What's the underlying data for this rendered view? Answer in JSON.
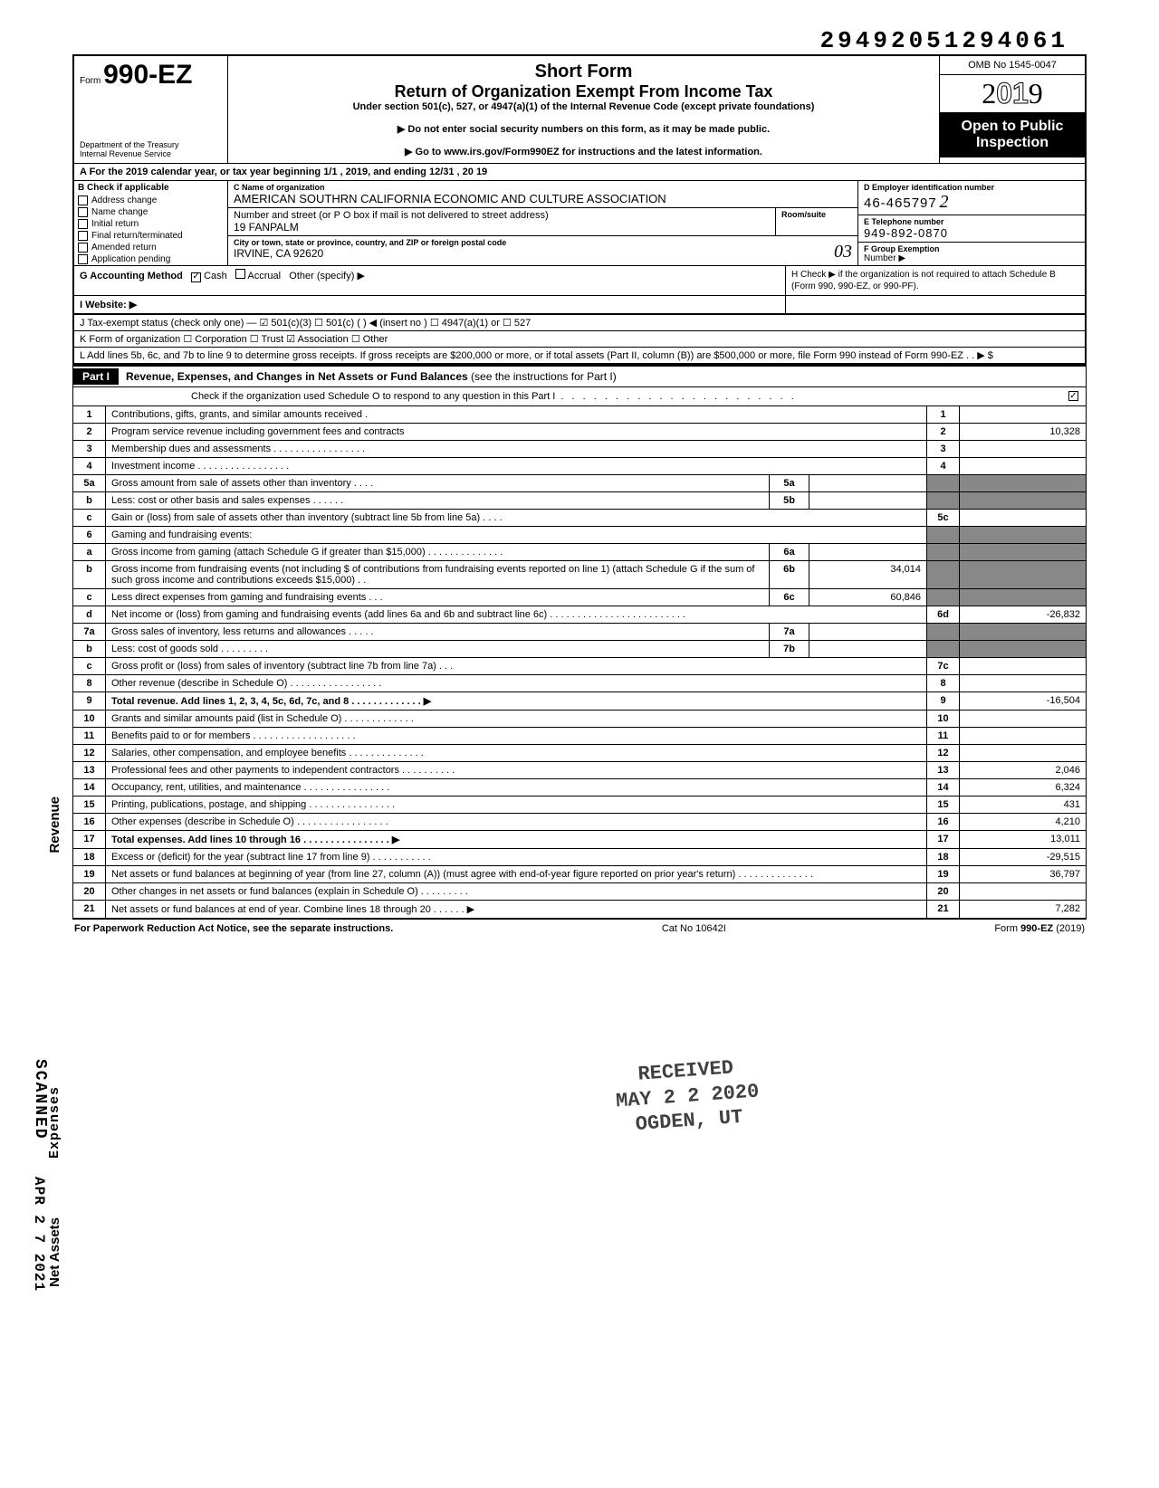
{
  "doc_number": "29492051294061",
  "header": {
    "form_prefix": "Form",
    "form_no": "990-EZ",
    "dept1": "Department of the Treasury",
    "dept2": "Internal Revenue Service",
    "title1": "Short Form",
    "title2": "Return of Organization Exempt From Income Tax",
    "title3": "Under section 501(c), 527, or 4947(a)(1) of the Internal Revenue Code (except private foundations)",
    "note1": "▶ Do not enter social security numbers on this form, as it may be made public.",
    "note2": "▶ Go to www.irs.gov/Form990EZ for instructions and the latest information.",
    "omb": "OMB No 1545-0047",
    "year": "2019",
    "open": "Open to Public Inspection"
  },
  "line_a": "A  For the 2019 calendar year, or tax year beginning                          1/1                          , 2019, and ending                  12/31                , 20    19",
  "section_b": {
    "label": "B  Check if applicable",
    "items": [
      "Address change",
      "Name change",
      "Initial return",
      "Final return/terminated",
      "Amended return",
      "Application pending"
    ]
  },
  "section_c": {
    "name_lab": "C  Name of organization",
    "name_val": "AMERICAN SOUTHRN CALIFORNIA ECONOMIC AND CULTURE ASSOCIATION",
    "addr_lab": "Number and street (or P O  box if mail is not delivered to street address)",
    "addr_val": "19 FANPALM",
    "room_lab": "Room/suite",
    "city_lab": "City or town, state or province, country, and ZIP or foreign postal code",
    "city_val": "IRVINE, CA 92620"
  },
  "section_d": {
    "ein_lab": "D  Employer identification number",
    "ein_val": "46-465797",
    "ein_hand": "2",
    "tel_lab": "E  Telephone number",
    "tel_val": "949-892-0870",
    "grp_lab": "F  Group Exemption",
    "grp_val": "Number  ▶"
  },
  "row_g": {
    "left_label": "G  Accounting Method",
    "cash": "Cash",
    "accr": "Accrual",
    "other": "Other (specify) ▶",
    "website": "I  Website: ▶",
    "h": "H  Check  ▶        if the organization is not required to attach Schedule B (Form 990, 990-EZ, or 990-PF)."
  },
  "row_j": "J  Tax-exempt status (check only one) —  ☑ 501(c)(3)     ☐ 501(c) (         ) ◀ (insert no )  ☐ 4947(a)(1) or    ☐ 527",
  "row_k": "K  Form of organization        ☐ Corporation        ☐ Trust                ☑ Association        ☐ Other",
  "row_l": "L  Add lines 5b, 6c, and 7b to line 9 to determine gross receipts. If gross receipts are $200,000 or more, or if total assets (Part II, column (B)) are $500,000 or more, file Form 990 instead of Form 990-EZ             .             .             ▶   $",
  "part1": {
    "bar": "Part I",
    "title": "Revenue, Expenses, and Changes in Net Assets or Fund Balances",
    "tail": " (see the instructions for Part I)",
    "check": "Check if the organization used Schedule O to respond to any question in this Part I",
    "check_box": "✓"
  },
  "lines": [
    {
      "n": "1",
      "d": "Contributions, gifts, grants, and similar amounts received .",
      "b": "1",
      "a": ""
    },
    {
      "n": "2",
      "d": "Program service revenue including government fees and contracts",
      "b": "2",
      "a": "10,328"
    },
    {
      "n": "3",
      "d": "Membership dues and assessments .   .   .   .   .   .   .   .   .   .   .   .   .   .   .   .   .",
      "b": "3",
      "a": ""
    },
    {
      "n": "4",
      "d": "Investment income     .   .   .   .                                 .   .   .   .   .   .   .   .   .   .   .   .   .",
      "b": "4",
      "a": ""
    }
  ],
  "line5": {
    "a_n": "5a",
    "a_d": "Gross amount from sale of assets other than inventory     .   .   .   .",
    "a_b": "5a",
    "a_a": "",
    "b_n": "b",
    "b_d": "Less: cost or other basis and sales expenses         .   .   .   .   .   .",
    "b_b": "5b",
    "b_a": "",
    "c_n": "c",
    "c_d": "Gain or (loss) from sale of assets other than inventory (subtract line 5b from line 5a)   .   .   .   .",
    "c_b": "5c",
    "c_a": ""
  },
  "line6": {
    "n": "6",
    "d": "Gaming and fundraising events:",
    "a_n": "a",
    "a_d": "Gross income from gaming (attach Schedule G if greater than $15,000)  .   .   .           .   .   .   .   .   .   .   .   .   .   .",
    "a_b": "6a",
    "a_a": "",
    "b_n": "b",
    "b_d": "Gross income from fundraising events (not including  $                       of contributions from fundraising events reported on line 1) (attach Schedule G if the sum of such gross income and contributions exceeds $15,000) .   .",
    "b_b": "6b",
    "b_a": "34,014",
    "c_n": "c",
    "c_d": "Less  direct expenses from gaming and fundraising events    .   .   .",
    "c_b": "6c",
    "c_a": "60,846",
    "d_n": "d",
    "d_d": "Net income or (loss) from gaming and fundraising events (add lines 6a and 6b and subtract line 6c)     .   .   .   .         .   .   .   .   .   .   .   .   .   .   .   .   .   .   .   .   .   .   .   .   .",
    "d_b": "6d",
    "d_a": "-26,832"
  },
  "line7": {
    "a_n": "7a",
    "a_d": "Gross sales of inventory, less returns and allowances   .   .   .   .   .",
    "a_b": "7a",
    "a_a": "",
    "b_n": "b",
    "b_d": "Less: cost of goods sold         .   .   .   .                   .   .   .   .   .",
    "b_b": "7b",
    "b_a": "",
    "c_n": "c",
    "c_d": "Gross profit or (loss) from sales of inventory (subtract line 7b from line 7a)    .   .   .",
    "c_b": "7c",
    "c_a": ""
  },
  "lines_tail": [
    {
      "n": "8",
      "d": "Other revenue (describe in Schedule O) .       .   .   .   .   .   .   .   .   .   .   .   .   .   .   .   .",
      "b": "8",
      "a": ""
    },
    {
      "n": "9",
      "d": "Total revenue. Add lines 1, 2, 3, 4, 5c, 6d, 7c, and 8    .   .   .   .   .   .   .   .   .   .   .   .   .  ▶",
      "b": "9",
      "a": "-16,504",
      "bold": true
    },
    {
      "n": "10",
      "d": "Grants and similar amounts paid (list in Schedule O)    .   .   .   .   .   .   .   .   .   .   .   .   .",
      "b": "10",
      "a": ""
    },
    {
      "n": "11",
      "d": "Benefits paid to or for members    .   .   .   .   .   .   .   .   .   .   .   .   .   .   .   .   .   .   .",
      "b": "11",
      "a": ""
    },
    {
      "n": "12",
      "d": "Salaries, other compensation, and employee benefits .   .   .   .   .   .   .   .   .   .   .   .   .   .",
      "b": "12",
      "a": ""
    },
    {
      "n": "13",
      "d": "Professional fees and other payments to independent contractors .   .   .   .   .   .   .   .   .   .",
      "b": "13",
      "a": "2,046"
    },
    {
      "n": "14",
      "d": "Occupancy, rent, utilities, and maintenance    .   .   .   .   .   .   .   .   .   .   .   .   .   .   .   .",
      "b": "14",
      "a": "6,324"
    },
    {
      "n": "15",
      "d": "Printing, publications, postage, and shipping .   .   .   .   .   .   .   .   .   .   .   .   .   .   .   .",
      "b": "15",
      "a": "431"
    },
    {
      "n": "16",
      "d": "Other expenses (describe in Schedule O)  .   .   .   .   .   .   .   .   .   .   .   .   .   .   .   .   .",
      "b": "16",
      "a": "4,210"
    },
    {
      "n": "17",
      "d": "Total expenses. Add lines 10 through 16   .   .   .   .   .   .   .   .   .   .   .   .   .   .   .   .  ▶",
      "b": "17",
      "a": "13,011",
      "bold": true
    },
    {
      "n": "18",
      "d": "Excess or (deficit) for the year (subtract line 17 from line 9)    .   .   .   .   .   .   .   .   .   .   .",
      "b": "18",
      "a": "-29,515"
    },
    {
      "n": "19",
      "d": "Net assets or fund balances at beginning of year (from line 27, column (A)) (must agree with end-of-year figure reported on prior year's return)     .   .   .   .   .   .   .   .   .   .   .   .   .   .",
      "b": "19",
      "a": "36,797"
    },
    {
      "n": "20",
      "d": "Other changes in net assets or fund balances (explain in Schedule O) .   .   .   .   .   .   .   .   .",
      "b": "20",
      "a": ""
    },
    {
      "n": "21",
      "d": "Net assets or fund balances at end of year. Combine lines 18 through 20    .   .   .   .   .   .  ▶",
      "b": "21",
      "a": "7,282"
    }
  ],
  "footer": {
    "left": "For Paperwork Reduction Act Notice, see the separate instructions.",
    "mid": "Cat No  10642I",
    "right": "Form 990-EZ (2019)"
  },
  "stamp": {
    "l1": "RECEIVED",
    "l2": "MAY 2 2 2020",
    "l3": "OGDEN, UT"
  },
  "side": {
    "rev": "Revenue",
    "exp": "Expenses",
    "net": "Net Assets",
    "scanned": "SCANNED",
    "apr": "APR 2 7 2021"
  },
  "hand": {
    "o3": "03"
  }
}
